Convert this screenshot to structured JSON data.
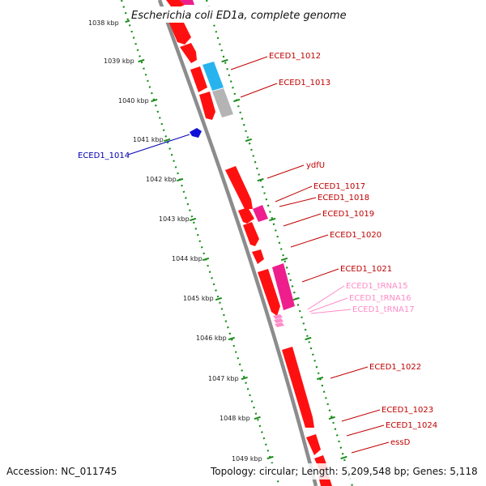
{
  "title": "Escherichia coli ED1a, complete genome",
  "accession": "Accession: NC_011745",
  "topology": "Topology: circular; Length: 5,209,548 bp; Genes: 5,118",
  "colors": {
    "backbone": "#8c8c8c",
    "tick_green": "#1a8c1a",
    "gene_red": "#ff1010",
    "gene_red_dark": "#c00000",
    "gene_cyan": "#27b4ee",
    "gene_gray": "#b4b4b4",
    "gene_magenta": "#ee1f8c",
    "gene_blue": "#1010d8",
    "trna_pink": "#ff8cc8",
    "label_red": "#c00000",
    "label_blue": "#0000b0",
    "label_pink": "#ff8cc8"
  },
  "kbp_ticks": [
    "1038 kbp",
    "1039 kbp",
    "1040 kbp",
    "1041 kbp",
    "1042 kbp",
    "1043 kbp",
    "1044 kbp",
    "1045 kbp",
    "1046 kbp",
    "1047 kbp",
    "1048 kbp",
    "1049 kbp"
  ],
  "gene_labels": [
    {
      "text": "ECED1_1012",
      "color": "red"
    },
    {
      "text": "ECED1_1013",
      "color": "red"
    },
    {
      "text": "ECED1_1014",
      "color": "blue"
    },
    {
      "text": "ydfU",
      "color": "red"
    },
    {
      "text": "ECED1_1017",
      "color": "red"
    },
    {
      "text": "ECED1_1018",
      "color": "red"
    },
    {
      "text": "ECED1_1019",
      "color": "red"
    },
    {
      "text": "ECED1_1020",
      "color": "red"
    },
    {
      "text": "ECED1_1021",
      "color": "red"
    },
    {
      "text": "ECED1_tRNA15",
      "color": "pink"
    },
    {
      "text": "ECED1_tRNA16",
      "color": "pink"
    },
    {
      "text": "ECED1_tRNA17",
      "color": "pink"
    },
    {
      "text": "ECED1_1022",
      "color": "red"
    },
    {
      "text": "ECED1_1023",
      "color": "red"
    },
    {
      "text": "ECED1_1024",
      "color": "red"
    },
    {
      "text": "essD",
      "color": "red"
    }
  ]
}
